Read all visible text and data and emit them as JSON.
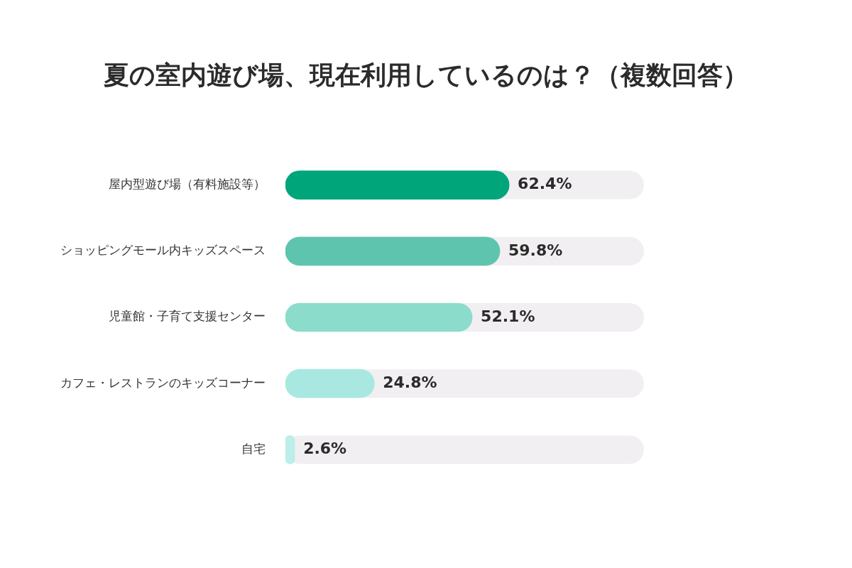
{
  "chart_data": {
    "type": "bar",
    "orientation": "horizontal",
    "title": "夏の室内遊び場、現在利用しているのは？（複数回答）",
    "categories": [
      "屋内型遊び場（有料施設等）",
      "ショッピングモール内キッズスペース",
      "児童館・子育て支援センター",
      "カフェ・レストランのキッズコーナー",
      "自宅"
    ],
    "values": [
      62.4,
      59.8,
      52.1,
      24.8,
      2.6
    ],
    "colors": [
      "#00a57a",
      "#5ec4ae",
      "#8cdccb",
      "#a8e8e0",
      "#bdeee9"
    ],
    "value_labels": [
      "62.4%",
      "59.8%",
      "52.1%",
      "24.8%",
      "2.6%"
    ],
    "xlim": [
      0,
      100
    ],
    "tick_labels": "y",
    "legend": false
  }
}
